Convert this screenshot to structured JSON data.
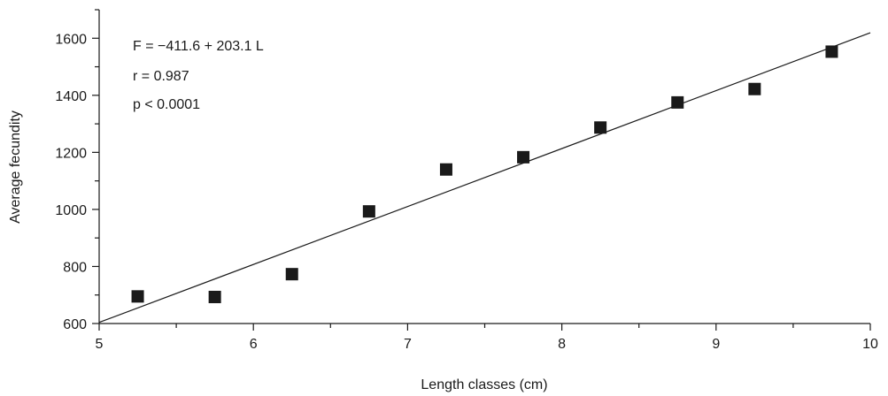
{
  "chart_data": {
    "type": "scatter",
    "xlabel": "Length classes (cm)",
    "ylabel": "Average fecundity",
    "xlim": [
      5,
      10
    ],
    "ylim": [
      600,
      1700
    ],
    "x_ticks": [
      5,
      6,
      7,
      8,
      9,
      10
    ],
    "x_tick_labels": [
      "5",
      "6",
      "7",
      "8",
      "9",
      "10"
    ],
    "x_minor_ticks": [
      5.5,
      6.5,
      7.5,
      8.5,
      9.5
    ],
    "y_ticks": [
      600,
      800,
      1000,
      1200,
      1400,
      1600
    ],
    "y_tick_labels": [
      "600",
      "800",
      "1000",
      "1200",
      "1400",
      "1600"
    ],
    "y_minor_ticks": [
      700,
      900,
      1100,
      1300,
      1500,
      1700
    ],
    "grid": false,
    "marker": "square",
    "marker_color": "#1a1a1a",
    "line_color": "#1a1a1a",
    "points": [
      {
        "x": 5.25,
        "y": 695
      },
      {
        "x": 5.75,
        "y": 693
      },
      {
        "x": 6.25,
        "y": 773
      },
      {
        "x": 6.75,
        "y": 993
      },
      {
        "x": 7.25,
        "y": 1140
      },
      {
        "x": 7.75,
        "y": 1183
      },
      {
        "x": 8.25,
        "y": 1287
      },
      {
        "x": 8.75,
        "y": 1375
      },
      {
        "x": 9.25,
        "y": 1422
      },
      {
        "x": 9.75,
        "y": 1553
      }
    ],
    "fit_line": {
      "intercept": -411.6,
      "slope": 203.1,
      "x_range": [
        5,
        10
      ]
    },
    "annotations": [
      "F = −411.6 + 203.1 L",
      "r = 0.987",
      "p < 0.0001"
    ]
  }
}
